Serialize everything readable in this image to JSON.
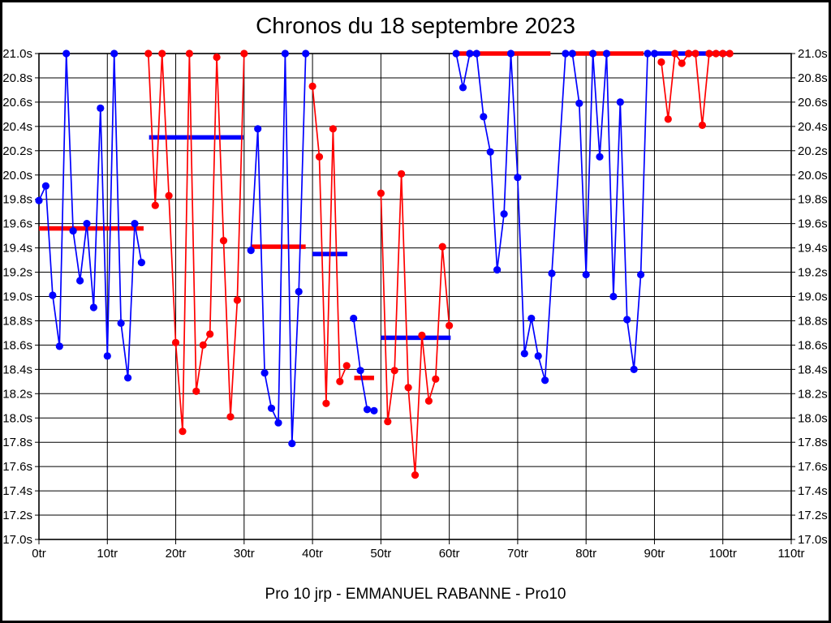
{
  "title": "Chronos du 18 septembre 2023",
  "caption": "Pro 10 jrp - EMMANUEL RABANNE - Pro10",
  "colors": {
    "blue": "#0000ff",
    "red": "#ff0000",
    "grid": "#000000",
    "background": "#ffffff"
  },
  "chart_data": {
    "type": "line",
    "title": "Chronos du 18 septembre 2023",
    "caption": "Pro 10 jrp - EMMANUEL RABANNE - Pro10",
    "grid": true,
    "legend": "none",
    "x_axis": {
      "min": 0,
      "max": 110,
      "step": 10,
      "unit": "tr",
      "tick_labels": [
        "0tr",
        "10tr",
        "20tr",
        "30tr",
        "40tr",
        "50tr",
        "60tr",
        "70tr",
        "80tr",
        "90tr",
        "100tr",
        "110tr"
      ]
    },
    "y_axis": {
      "min": 17.0,
      "max": 21.0,
      "step": 0.2,
      "unit": "s",
      "labels_on_both_sides": true,
      "tick_labels": [
        "21.0s",
        "20.8s",
        "20.6s",
        "20.4s",
        "20.2s",
        "20.0s",
        "19.8s",
        "19.6s",
        "19.4s",
        "19.2s",
        "19.0s",
        "18.8s",
        "18.6s",
        "18.4s",
        "18.2s",
        "18.0s",
        "17.8s",
        "17.6s",
        "17.4s",
        "17.2s",
        "17.0s"
      ]
    },
    "stints": [
      {
        "name": "stint-1",
        "color": "blue",
        "points": [
          [
            0,
            19.79
          ],
          [
            1,
            19.91
          ],
          [
            2,
            19.01
          ],
          [
            3,
            18.59
          ],
          [
            4,
            21.0
          ],
          [
            5,
            19.54
          ],
          [
            6,
            19.13
          ],
          [
            7,
            19.6
          ],
          [
            8,
            18.91
          ],
          [
            9,
            20.55
          ],
          [
            10,
            18.51
          ],
          [
            11,
            21.0
          ],
          [
            12,
            18.78
          ],
          [
            13,
            18.33
          ],
          [
            14,
            19.6
          ],
          [
            15,
            19.28
          ]
        ]
      },
      {
        "name": "stint-2",
        "color": "red",
        "points": [
          [
            16,
            21.0
          ],
          [
            17,
            19.75
          ],
          [
            18,
            21.0
          ],
          [
            19,
            19.83
          ],
          [
            20,
            18.62
          ],
          [
            21,
            17.89
          ],
          [
            22,
            21.0
          ],
          [
            23,
            18.22
          ],
          [
            24,
            18.6
          ],
          [
            25,
            18.69
          ],
          [
            26,
            20.97
          ],
          [
            27,
            19.46
          ],
          [
            28,
            18.01
          ],
          [
            29,
            18.97
          ],
          [
            30,
            21.0
          ]
        ]
      },
      {
        "name": "stint-3",
        "color": "blue",
        "points": [
          [
            31,
            19.38
          ],
          [
            32,
            20.38
          ],
          [
            33,
            18.37
          ],
          [
            34,
            18.08
          ],
          [
            35,
            17.96
          ],
          [
            36,
            21.0
          ],
          [
            37,
            17.79
          ],
          [
            38,
            19.04
          ],
          [
            39,
            21.0
          ]
        ]
      },
      {
        "name": "stint-4",
        "color": "red",
        "points": [
          [
            40,
            20.73
          ],
          [
            41,
            20.15
          ],
          [
            42,
            18.12
          ],
          [
            43,
            20.38
          ],
          [
            44,
            18.3
          ],
          [
            45,
            18.43
          ]
        ]
      },
      {
        "name": "stint-5",
        "color": "blue",
        "points": [
          [
            46,
            18.82
          ],
          [
            47,
            18.39
          ],
          [
            48,
            18.07
          ],
          [
            49,
            18.06
          ]
        ]
      },
      {
        "name": "stint-6",
        "color": "red",
        "points": [
          [
            50,
            19.85
          ],
          [
            51,
            17.97
          ],
          [
            52,
            18.39
          ],
          [
            53,
            20.01
          ],
          [
            54,
            18.25
          ],
          [
            55,
            17.53
          ],
          [
            56,
            18.68
          ],
          [
            57,
            18.14
          ],
          [
            58,
            18.32
          ],
          [
            59,
            19.41
          ],
          [
            60,
            18.76
          ]
        ]
      },
      {
        "name": "stint-7",
        "color": "blue",
        "points": [
          [
            61,
            21.0
          ],
          [
            62,
            20.72
          ],
          [
            63,
            21.0
          ],
          [
            64,
            21.0
          ],
          [
            65,
            20.48
          ],
          [
            66,
            20.19
          ],
          [
            67,
            19.22
          ],
          [
            68,
            19.68
          ],
          [
            69,
            21.0
          ],
          [
            70,
            19.98
          ],
          [
            71,
            18.53
          ],
          [
            72,
            18.82
          ],
          [
            73,
            18.51
          ],
          [
            74,
            18.31
          ],
          [
            75,
            19.19
          ],
          [
            77,
            21.0
          ],
          [
            78,
            21.0
          ],
          [
            79,
            20.59
          ],
          [
            80,
            19.18
          ],
          [
            81,
            21.0
          ],
          [
            82,
            20.15
          ],
          [
            83,
            21.0
          ],
          [
            84,
            19.0
          ],
          [
            85,
            20.6
          ],
          [
            86,
            18.81
          ],
          [
            87,
            18.4
          ],
          [
            88,
            19.18
          ],
          [
            89,
            21.0
          ],
          [
            90,
            21.0
          ]
        ]
      },
      {
        "name": "stint-8",
        "color": "red",
        "points": [
          [
            91,
            20.93
          ],
          [
            92,
            20.46
          ],
          [
            93,
            21.0
          ],
          [
            94,
            20.92
          ],
          [
            95,
            21.0
          ],
          [
            96,
            21.0
          ],
          [
            97,
            20.41
          ],
          [
            98,
            21.0
          ],
          [
            99,
            21.0
          ],
          [
            100,
            21.0
          ],
          [
            101,
            21.0
          ]
        ]
      }
    ],
    "average_lines": [
      {
        "color": "red",
        "value": 19.56,
        "from_lap": 0.0,
        "to_lap": 15.3
      },
      {
        "color": "blue",
        "value": 20.31,
        "from_lap": 16.1,
        "to_lap": 29.9
      },
      {
        "color": "red",
        "value": 19.41,
        "from_lap": 31.0,
        "to_lap": 39.0
      },
      {
        "color": "blue",
        "value": 19.35,
        "from_lap": 40.0,
        "to_lap": 45.1
      },
      {
        "color": "red",
        "value": 18.33,
        "from_lap": 46.1,
        "to_lap": 49.0
      },
      {
        "color": "blue",
        "value": 18.66,
        "from_lap": 50.0,
        "to_lap": 60.2
      },
      {
        "color": "red",
        "value": 21.0,
        "from_lap": 60.9,
        "to_lap": 74.8
      },
      {
        "color": "red",
        "value": 21.0,
        "from_lap": 78.1,
        "to_lap": 88.4
      },
      {
        "color": "blue",
        "value": 21.0,
        "from_lap": 90.1,
        "to_lap": 100.8
      }
    ]
  }
}
